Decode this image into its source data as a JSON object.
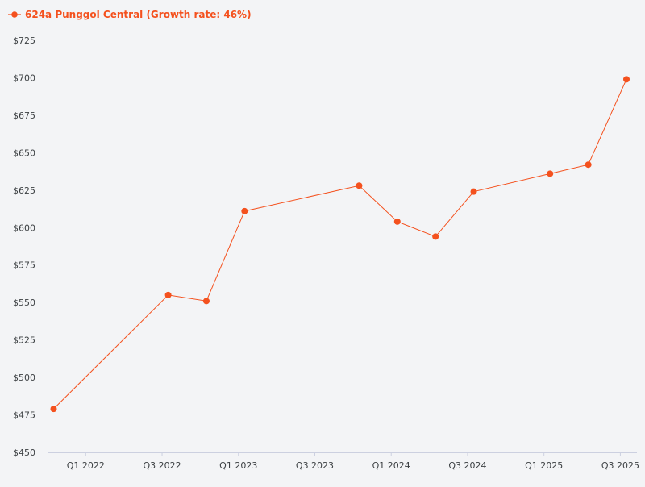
{
  "chart_data": {
    "type": "line",
    "title": "",
    "xlabel": "",
    "ylabel": "",
    "ylim": [
      450,
      725
    ],
    "y_ticks": [
      "$450",
      "$475",
      "$500",
      "$525",
      "$550",
      "$575",
      "$600",
      "$625",
      "$650",
      "$675",
      "$700",
      "$725"
    ],
    "y_tick_values": [
      450,
      475,
      500,
      525,
      550,
      575,
      600,
      625,
      650,
      675,
      700,
      725
    ],
    "x_ticks": [
      "Q1 2022",
      "Q3 2022",
      "Q1 2023",
      "Q3 2023",
      "Q1 2024",
      "Q3 2024",
      "Q1 2025",
      "Q3 2025"
    ],
    "x_tick_positions": [
      2022.0,
      2022.5,
      2023.0,
      2023.5,
      2024.0,
      2024.5,
      2025.0,
      2025.5
    ],
    "x_range": [
      2021.75,
      2025.5
    ],
    "grid": false,
    "legend_position": "top-left",
    "series": [
      {
        "name": "624a Punggol Central (Growth rate: 46%)",
        "color": "#f4511e",
        "points": [
          {
            "x": 2021.79,
            "y": 479
          },
          {
            "x": 2022.54,
            "y": 555
          },
          {
            "x": 2022.79,
            "y": 551
          },
          {
            "x": 2023.04,
            "y": 611
          },
          {
            "x": 2023.79,
            "y": 628
          },
          {
            "x": 2024.04,
            "y": 604
          },
          {
            "x": 2024.29,
            "y": 594
          },
          {
            "x": 2024.54,
            "y": 624
          },
          {
            "x": 2025.04,
            "y": 636
          },
          {
            "x": 2025.29,
            "y": 642
          },
          {
            "x": 2025.54,
            "y": 699
          }
        ]
      }
    ]
  }
}
